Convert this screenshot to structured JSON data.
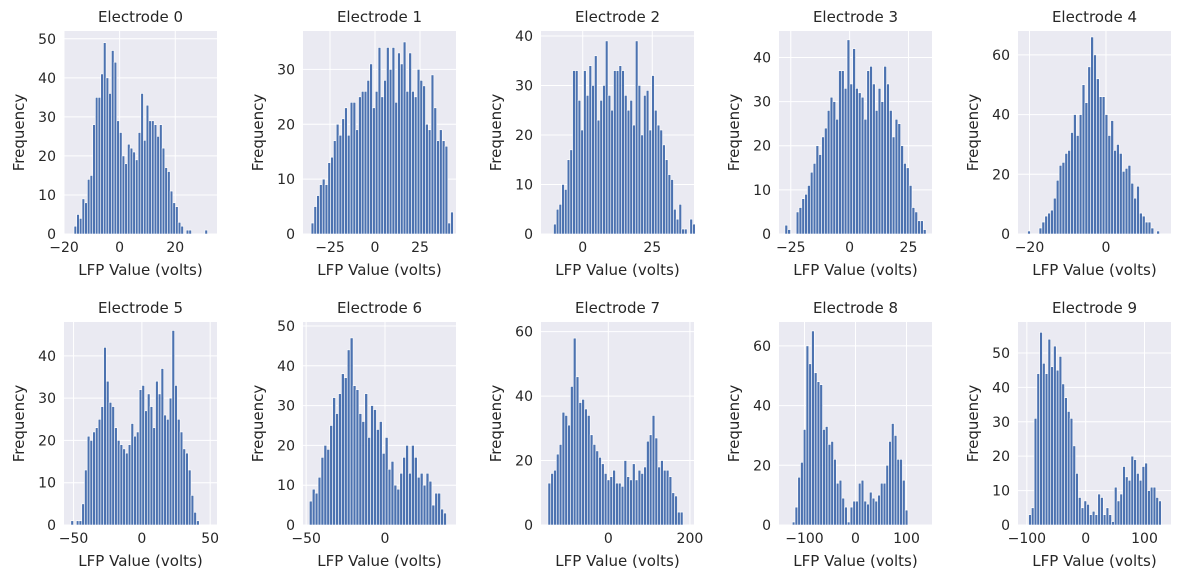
{
  "figure": {
    "background": "#ffffff",
    "panel_background": "#eaeaf2",
    "grid_color": "#ffffff",
    "bar_color": "#4c72b0"
  },
  "chart_data": [
    {
      "type": "bar",
      "title": "Electrode 0",
      "xlabel": "LFP Value (volts)",
      "ylabel": "Frequency",
      "grid": true,
      "xlim": [
        -20,
        35
      ],
      "ylim": [
        0,
        52
      ],
      "xticks": [
        -20,
        0,
        20
      ],
      "yticks": [
        0,
        10,
        20,
        30,
        40,
        50
      ],
      "bins": {
        "start": -16.4,
        "width": 0.96,
        "counts": [
          2,
          5,
          4,
          9,
          8,
          14,
          15,
          28,
          35,
          35,
          41,
          49,
          40,
          36,
          47,
          44,
          29,
          26,
          20,
          18,
          23,
          22,
          21,
          19,
          26,
          36,
          24,
          33,
          29,
          29,
          28,
          25,
          28,
          22,
          17,
          16,
          11,
          8,
          7,
          3,
          2,
          0,
          1,
          1,
          0,
          0,
          0,
          0,
          0,
          1
        ]
      }
    },
    {
      "type": "bar",
      "title": "Electrode 1",
      "xlabel": "LFP Value (volts)",
      "ylabel": "Frequency",
      "grid": true,
      "xlim": [
        -40,
        45
      ],
      "ylim": [
        0,
        37
      ],
      "xticks": [
        -25,
        0,
        25
      ],
      "yticks": [
        0,
        10,
        20,
        30
      ],
      "bins": {
        "start": -35.5,
        "width": 1.55,
        "counts": [
          2,
          5,
          7,
          9,
          10,
          9,
          13,
          14,
          17,
          20,
          18,
          21,
          23,
          18,
          24,
          24,
          19,
          25,
          26,
          26,
          28,
          31,
          23,
          26,
          34,
          25,
          28,
          34,
          30,
          34,
          24,
          33,
          31,
          35,
          26,
          33,
          26,
          25,
          30,
          28,
          27,
          20,
          19,
          29,
          23,
          17,
          19,
          17,
          16,
          2,
          4
        ]
      }
    },
    {
      "type": "bar",
      "title": "Electrode 2",
      "xlabel": "LFP Value (volts)",
      "ylabel": "Frequency",
      "grid": true,
      "xlim": [
        -15,
        40
      ],
      "ylim": [
        0,
        41
      ],
      "xticks": [
        0,
        25
      ],
      "yticks": [
        0,
        10,
        20,
        30,
        40
      ],
      "bins": {
        "start": -10.5,
        "width": 0.98,
        "counts": [
          2,
          5,
          6,
          10,
          9,
          15,
          17,
          33,
          33,
          27,
          21,
          33,
          28,
          34,
          30,
          36,
          23,
          27,
          30,
          39,
          28,
          25,
          33,
          33,
          34,
          33,
          28,
          25,
          27,
          22,
          39,
          30,
          20,
          28,
          29,
          21,
          32,
          25,
          22,
          21,
          18,
          15,
          12,
          11,
          5,
          3,
          6,
          1,
          1,
          0,
          3,
          2
        ]
      }
    },
    {
      "type": "bar",
      "title": "Electrode 3",
      "xlabel": "LFP Value (volts)",
      "ylabel": "Frequency",
      "grid": true,
      "xlim": [
        -30,
        35
      ],
      "ylim": [
        0,
        46
      ],
      "xticks": [
        -25,
        0,
        25
      ],
      "yticks": [
        0,
        10,
        20,
        30,
        40
      ],
      "bins": {
        "start": -27.5,
        "width": 1.2,
        "counts": [
          2,
          1,
          0,
          0,
          5,
          6,
          8,
          9,
          11,
          14,
          16,
          20,
          18,
          22,
          24,
          28,
          31,
          30,
          26,
          37,
          37,
          33,
          44,
          34,
          42,
          33,
          32,
          31,
          26,
          37,
          38,
          34,
          28,
          33,
          30,
          38,
          34,
          28,
          22,
          26,
          25,
          20,
          16,
          15,
          11,
          6,
          5,
          3,
          3,
          1
        ]
      }
    },
    {
      "type": "bar",
      "title": "Electrode 4",
      "xlabel": "LFP Value (volts)",
      "ylabel": "Frequency",
      "grid": true,
      "xlim": [
        -23,
        17
      ],
      "ylim": [
        0,
        68
      ],
      "xticks": [
        -20,
        0
      ],
      "yticks": [
        0,
        20,
        40,
        60
      ],
      "bins": {
        "start": -20.5,
        "width": 0.75,
        "counts": [
          1,
          0,
          0,
          0,
          2,
          4,
          6,
          7,
          8,
          12,
          18,
          23,
          24,
          27,
          28,
          34,
          40,
          33,
          40,
          50,
          44,
          56,
          66,
          60,
          52,
          46,
          46,
          40,
          33,
          38,
          28,
          30,
          27,
          21,
          22,
          23,
          17,
          12,
          16,
          7,
          6,
          4,
          4,
          2,
          0,
          1
        ]
      }
    },
    {
      "type": "bar",
      "title": "Electrode 5",
      "xlabel": "LFP Value (volts)",
      "ylabel": "Frequency",
      "grid": true,
      "xlim": [
        -57,
        55
      ],
      "ylim": [
        0,
        48
      ],
      "xticks": [
        -50,
        0,
        50
      ],
      "yticks": [
        0,
        10,
        20,
        30,
        40
      ],
      "bins": {
        "start": -52,
        "width": 2.0,
        "counts": [
          1,
          0,
          1,
          1,
          5,
          13,
          21,
          20,
          22,
          23,
          25,
          28,
          42,
          34,
          29,
          28,
          23,
          20,
          19,
          18,
          17,
          19,
          24,
          21,
          22,
          32,
          33,
          27,
          31,
          28,
          23,
          34,
          31,
          37,
          26,
          25,
          30,
          46,
          33,
          25,
          22,
          18,
          17,
          13,
          7,
          3,
          1
        ]
      }
    },
    {
      "type": "bar",
      "title": "Electrode 6",
      "xlabel": "LFP Value (volts)",
      "ylabel": "Frequency",
      "grid": true,
      "xlim": [
        -52,
        45
      ],
      "ylim": [
        0,
        51
      ],
      "xticks": [
        -50,
        0
      ],
      "yticks": [
        0,
        10,
        20,
        30,
        40,
        50
      ],
      "bins": {
        "start": -48,
        "width": 1.85,
        "counts": [
          6,
          9,
          8,
          12,
          17,
          20,
          19,
          25,
          32,
          28,
          33,
          38,
          37,
          44,
          47,
          35,
          34,
          28,
          26,
          33,
          22,
          30,
          29,
          24,
          26,
          18,
          22,
          14,
          16,
          10,
          9,
          13,
          17,
          20,
          13,
          20,
          17,
          12,
          13,
          10,
          13,
          11,
          5,
          8,
          8,
          4,
          3
        ]
      }
    },
    {
      "type": "bar",
      "title": "Electrode 7",
      "xlabel": "LFP Value (volts)",
      "ylabel": "Frequency",
      "grid": true,
      "xlim": [
        -165,
        210
      ],
      "ylim": [
        0,
        63
      ],
      "xticks": [
        0,
        200
      ],
      "yticks": [
        0,
        20,
        40,
        60
      ],
      "bins": {
        "start": -148,
        "width": 6.9,
        "counts": [
          13,
          16,
          17,
          22,
          25,
          35,
          34,
          31,
          43,
          58,
          46,
          38,
          39,
          36,
          34,
          28,
          25,
          23,
          21,
          19,
          16,
          14,
          15,
          17,
          13,
          13,
          12,
          20,
          15,
          14,
          19,
          14,
          17,
          16,
          18,
          26,
          28,
          34,
          27,
          18,
          20,
          17,
          17,
          15,
          10,
          9,
          4,
          4
        ]
      }
    },
    {
      "type": "bar",
      "title": "Electrode 8",
      "xlabel": "LFP Value (volts)",
      "ylabel": "Frequency",
      "grid": true,
      "xlim": [
        -150,
        150
      ],
      "ylim": [
        0,
        68
      ],
      "xticks": [
        -100,
        0,
        100
      ],
      "yticks": [
        0,
        20,
        40,
        60
      ],
      "bins": {
        "start": -124,
        "width": 5.4,
        "counts": [
          1,
          6,
          16,
          21,
          32,
          60,
          54,
          65,
          51,
          48,
          47,
          32,
          33,
          27,
          28,
          22,
          14,
          15,
          9,
          6,
          1,
          6,
          8,
          8,
          14,
          15,
          8,
          7,
          11,
          9,
          8,
          10,
          14,
          14,
          20,
          28,
          34,
          30,
          22,
          22,
          15,
          5
        ]
      }
    },
    {
      "type": "bar",
      "title": "Electrode 9",
      "xlabel": "LFP Value (volts)",
      "ylabel": "Frequency",
      "grid": true,
      "xlim": [
        -115,
        145
      ],
      "ylim": [
        0,
        59
      ],
      "xticks": [
        -100,
        0,
        100
      ],
      "yticks": [
        0,
        10,
        20,
        30,
        40,
        50
      ],
      "bins": {
        "start": -97,
        "width": 4.7,
        "counts": [
          3,
          5,
          31,
          44,
          56,
          47,
          44,
          54,
          46,
          52,
          45,
          49,
          41,
          37,
          33,
          31,
          23,
          15,
          8,
          5,
          7,
          6,
          3,
          4,
          3,
          9,
          8,
          3,
          5,
          3,
          1,
          11,
          7,
          9,
          17,
          14,
          13,
          20,
          19,
          15,
          13,
          17,
          18,
          10,
          11,
          11,
          8,
          7
        ]
      }
    }
  ]
}
